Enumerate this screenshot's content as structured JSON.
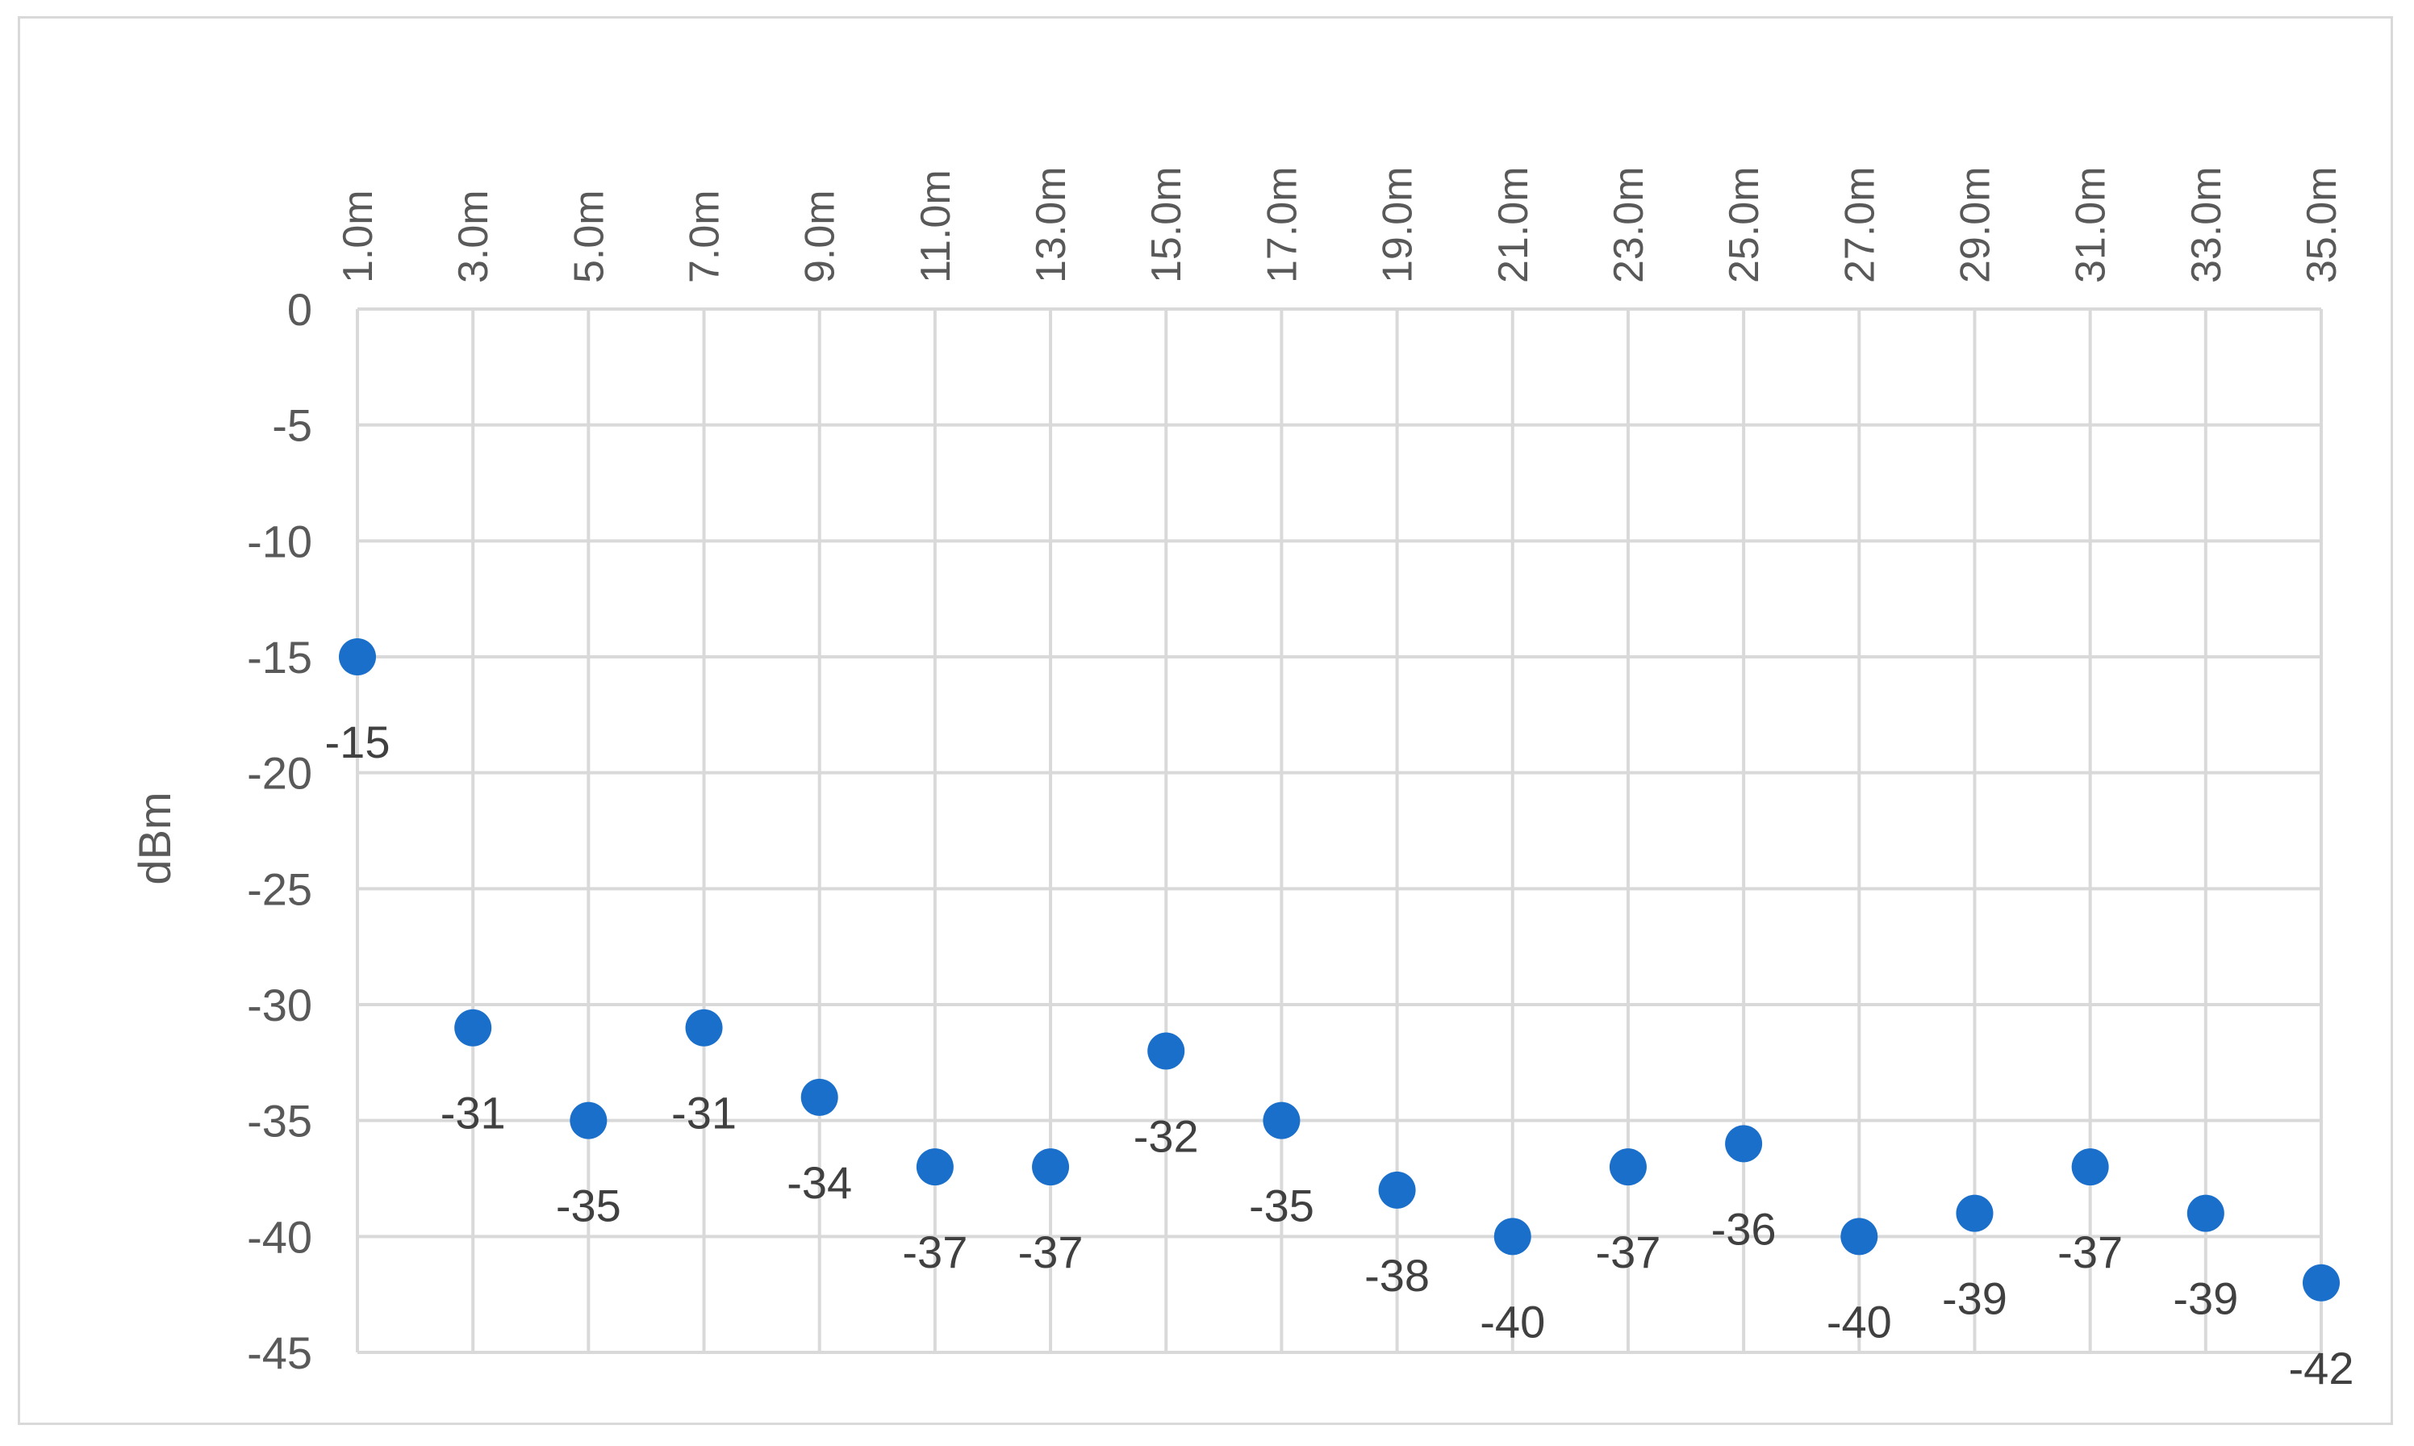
{
  "chart_data": {
    "type": "scatter",
    "title": "",
    "xlabel": "",
    "ylabel": "dBm",
    "categories": [
      "1.0m",
      "3.0m",
      "5.0m",
      "7.0m",
      "9.0m",
      "11.0m",
      "13.0m",
      "15.0m",
      "17.0m",
      "19.0m",
      "21.0m",
      "23.0m",
      "25.0m",
      "27.0m",
      "29.0m",
      "31.0m",
      "33.0m",
      "35.0m"
    ],
    "values": [
      -15,
      -31,
      -35,
      -31,
      -34,
      -37,
      -37,
      -32,
      -35,
      -38,
      -40,
      -37,
      -36,
      -40,
      -39,
      -37,
      -39,
      -42
    ],
    "data_labels": [
      "-15",
      "-31",
      "-35",
      "-31",
      "-34",
      "-37",
      "-37",
      "-32",
      "-35",
      "-38",
      "-40",
      "-37",
      "-36",
      "-40",
      "-39",
      "-37",
      "-39",
      "-42"
    ],
    "y_ticks": [
      "0",
      "-5",
      "-10",
      "-15",
      "-20",
      "-25",
      "-30",
      "-35",
      "-40",
      "-45"
    ],
    "ylim": [
      -45,
      0
    ],
    "grid": true,
    "x_axis_position": "top",
    "legend": "none",
    "marker_color": "#1a6fca",
    "grid_color": "#d9d9d9"
  }
}
